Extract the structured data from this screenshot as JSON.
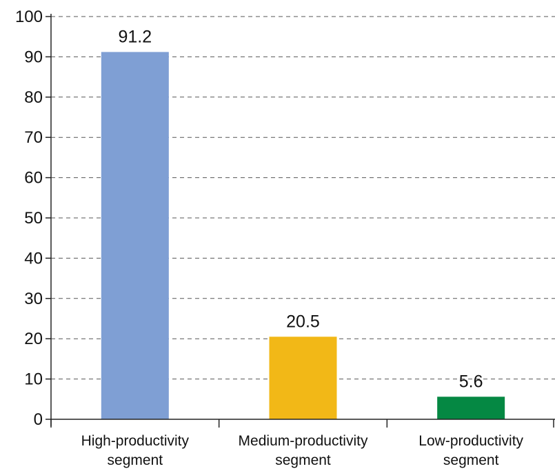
{
  "chart_data": {
    "type": "bar",
    "title": "",
    "xlabel": "",
    "ylabel": "",
    "categories": [
      [
        "High-productivity",
        "segment"
      ],
      [
        "Medium-productivity",
        "segment"
      ],
      [
        "Low-productivity",
        "segment"
      ]
    ],
    "values": [
      91.2,
      20.5,
      5.6
    ],
    "data_labels": [
      "91.2",
      "20.5",
      "5.6"
    ],
    "colors": [
      "#7f9fd4",
      "#f2b817",
      "#058843"
    ],
    "ylim": [
      0,
      100
    ],
    "yticks": [
      0,
      10,
      20,
      30,
      40,
      50,
      60,
      70,
      80,
      90,
      100
    ],
    "grid": true,
    "legend": "none"
  }
}
